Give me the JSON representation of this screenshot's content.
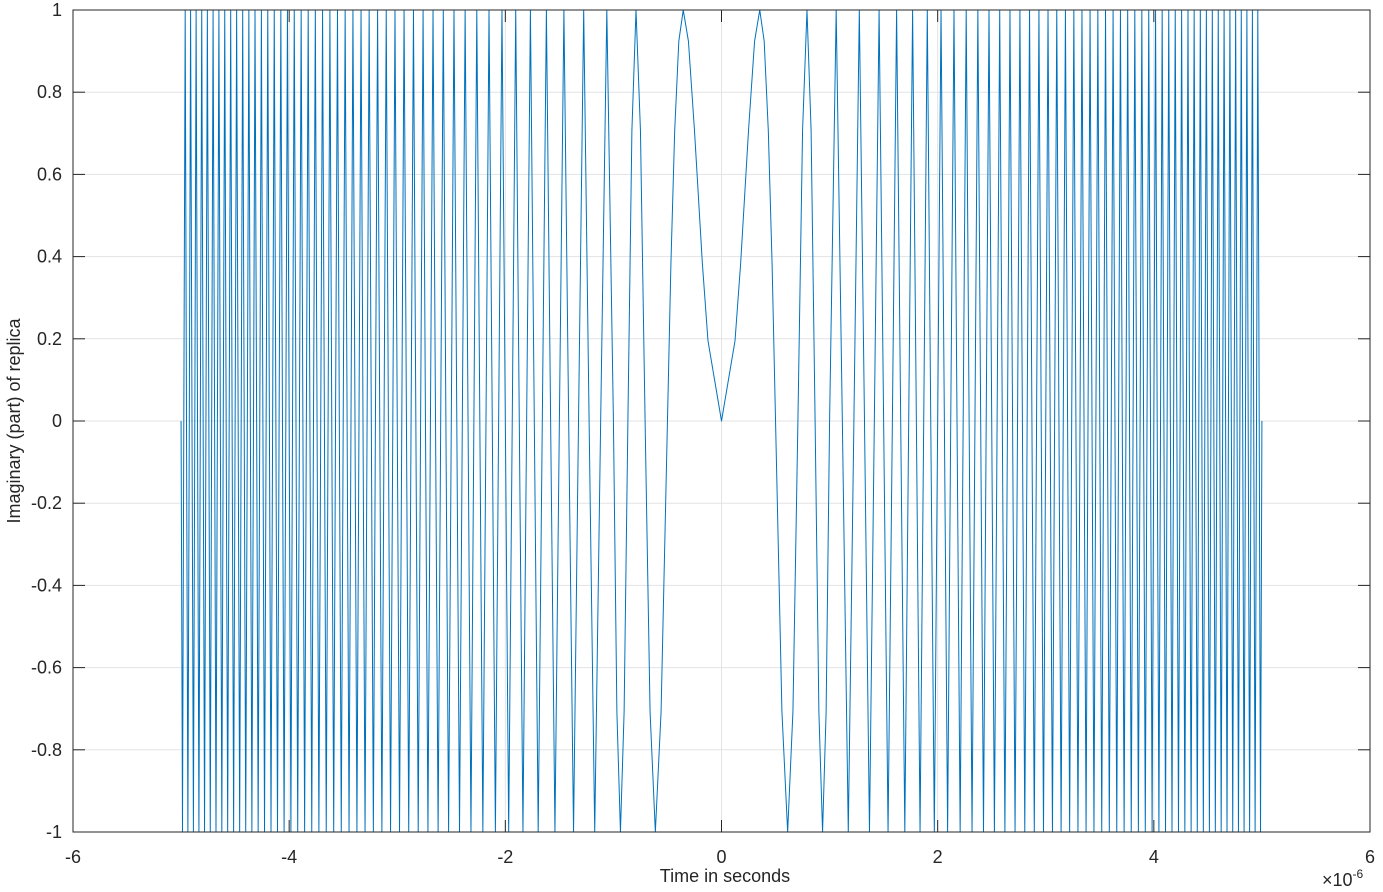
{
  "chart_data": {
    "type": "line",
    "x_label": "Time in seconds",
    "y_label": "Imaginary (part) of replica",
    "x_exponent": {
      "base": "×10",
      "power": "-6"
    },
    "color": "#0072bd",
    "grid": true,
    "xlim": [
      -6,
      6
    ],
    "ylim": [
      -1,
      1
    ],
    "xticks": [
      -6,
      -4,
      -2,
      0,
      2,
      4,
      6
    ],
    "yticks": [
      -1,
      -0.8,
      -0.6,
      -0.4,
      -0.2,
      0,
      0.2,
      0.4,
      0.6,
      0.8,
      1
    ],
    "x": [
      -5,
      -4.987,
      -4.975,
      -4.962,
      -4.95,
      -4.937,
      -4.924,
      -4.912,
      -4.899,
      -4.886,
      -4.873,
      -4.861,
      -4.848,
      -4.835,
      -4.822,
      -4.809,
      -4.796,
      -4.783,
      -4.77,
      -4.757,
      -4.743,
      -4.73,
      -4.717,
      -4.704,
      -4.69,
      -4.677,
      -4.664,
      -4.65,
      -4.637,
      -4.623,
      -4.61,
      -4.596,
      -4.583,
      -4.569,
      -4.555,
      -4.541,
      -4.528,
      -4.514,
      -4.5,
      -4.486,
      -4.472,
      -4.458,
      -4.444,
      -4.43,
      -4.416,
      -4.402,
      -4.387,
      -4.373,
      -4.359,
      -4.345,
      -4.33,
      -4.316,
      -4.301,
      -4.287,
      -4.272,
      -4.257,
      -4.243,
      -4.228,
      -4.213,
      -4.198,
      -4.183,
      -4.168,
      -4.153,
      -4.138,
      -4.123,
      -4.108,
      -4.093,
      -4.077,
      -4.062,
      -4.047,
      -4.031,
      -4.016,
      -4,
      -3.984,
      -3.969,
      -3.953,
      -3.937,
      -3.921,
      -3.905,
      -3.889,
      -3.873,
      -3.857,
      -3.841,
      -3.824,
      -3.808,
      -3.791,
      -3.775,
      -3.758,
      -3.742,
      -3.725,
      -3.708,
      -3.691,
      -3.674,
      -3.657,
      -3.64,
      -3.623,
      -3.606,
      -3.588,
      -3.571,
      -3.553,
      -3.536,
      -3.518,
      -3.5,
      -3.482,
      -3.464,
      -3.446,
      -3.428,
      -3.41,
      -3.391,
      -3.373,
      -3.354,
      -3.335,
      -3.317,
      -3.298,
      -3.279,
      -3.26,
      -3.24,
      -3.221,
      -3.202,
      -3.182,
      -3.162,
      -3.142,
      -3.122,
      -3.102,
      -3.082,
      -3.062,
      -3.041,
      -3.021,
      -3,
      -2.979,
      -2.958,
      -2.937,
      -2.915,
      -2.894,
      -2.872,
      -2.85,
      -2.828,
      -2.806,
      -2.784,
      -2.761,
      -2.739,
      -2.716,
      -2.693,
      -2.669,
      -2.646,
      -2.622,
      -2.598,
      -2.574,
      -2.55,
      -2.525,
      -2.5,
      -2.475,
      -2.449,
      -2.424,
      -2.398,
      -2.372,
      -2.345,
      -2.318,
      -2.291,
      -2.264,
      -2.236,
      -2.208,
      -2.179,
      -2.151,
      -2.121,
      -2.092,
      -2.062,
      -2.031,
      -2,
      -1.969,
      -1.936,
      -1.904,
      -1.871,
      -1.837,
      -1.803,
      -1.768,
      -1.732,
      -1.696,
      -1.658,
      -1.62,
      -1.581,
      -1.541,
      -1.5,
      -1.458,
      -1.414,
      -1.369,
      -1.323,
      -1.275,
      -1.225,
      -1.173,
      -1.118,
      -1.061,
      -1,
      -0.968,
      -0.935,
      -0.901,
      -0.866,
      -0.829,
      -0.791,
      -0.75,
      -0.707,
      -0.661,
      -0.612,
      -0.559,
      -0.5,
      -0.468,
      -0.433,
      -0.395,
      -0.354,
      -0.306,
      -0.25,
      -0.177,
      -0.125,
      0,
      0.125,
      0.177,
      0.25,
      0.306,
      0.354,
      0.395,
      0.433,
      0.468,
      0.5,
      0.559,
      0.612,
      0.661,
      0.707,
      0.75,
      0.791,
      0.829,
      0.866,
      0.901,
      0.935,
      0.968,
      1,
      1.061,
      1.118,
      1.173,
      1.225,
      1.275,
      1.323,
      1.369,
      1.414,
      1.458,
      1.5,
      1.541,
      1.581,
      1.62,
      1.658,
      1.696,
      1.732,
      1.768,
      1.803,
      1.837,
      1.871,
      1.904,
      1.936,
      1.969,
      2,
      2.031,
      2.062,
      2.092,
      2.121,
      2.151,
      2.179,
      2.208,
      2.236,
      2.264,
      2.291,
      2.318,
      2.345,
      2.372,
      2.398,
      2.424,
      2.449,
      2.475,
      2.5,
      2.525,
      2.55,
      2.574,
      2.598,
      2.622,
      2.646,
      2.669,
      2.693,
      2.716,
      2.739,
      2.761,
      2.784,
      2.806,
      2.828,
      2.85,
      2.872,
      2.894,
      2.915,
      2.937,
      2.958,
      2.979,
      3,
      3.021,
      3.041,
      3.062,
      3.082,
      3.102,
      3.122,
      3.142,
      3.162,
      3.182,
      3.202,
      3.221,
      3.24,
      3.26,
      3.279,
      3.298,
      3.317,
      3.335,
      3.354,
      3.373,
      3.391,
      3.41,
      3.428,
      3.446,
      3.464,
      3.482,
      3.5,
      3.518,
      3.536,
      3.553,
      3.571,
      3.588,
      3.606,
      3.623,
      3.64,
      3.657,
      3.674,
      3.691,
      3.708,
      3.725,
      3.742,
      3.758,
      3.775,
      3.791,
      3.808,
      3.824,
      3.841,
      3.857,
      3.873,
      3.889,
      3.905,
      3.921,
      3.937,
      3.953,
      3.969,
      3.984,
      4,
      4.016,
      4.031,
      4.047,
      4.062,
      4.077,
      4.093,
      4.108,
      4.123,
      4.138,
      4.153,
      4.168,
      4.183,
      4.198,
      4.213,
      4.228,
      4.243,
      4.257,
      4.272,
      4.287,
      4.301,
      4.316,
      4.33,
      4.345,
      4.359,
      4.373,
      4.387,
      4.402,
      4.416,
      4.43,
      4.444,
      4.458,
      4.472,
      4.486,
      4.5,
      4.514,
      4.528,
      4.541,
      4.555,
      4.569,
      4.583,
      4.596,
      4.61,
      4.623,
      4.637,
      4.65,
      4.664,
      4.677,
      4.69,
      4.704,
      4.717,
      4.73,
      4.743,
      4.757,
      4.77,
      4.783,
      4.796,
      4.809,
      4.822,
      4.835,
      4.848,
      4.861,
      4.873,
      4.886,
      4.899,
      4.912,
      4.924,
      4.937,
      4.95,
      4.962,
      4.975,
      4.987,
      5
    ],
    "values": [
      0,
      -1,
      0,
      1,
      0,
      -1,
      0,
      1,
      0,
      -1,
      0,
      1,
      0,
      -1,
      0,
      1,
      0,
      -1,
      0,
      1,
      0,
      -1,
      0,
      1,
      0,
      -1,
      0,
      1,
      0,
      -1,
      0,
      1,
      0,
      -1,
      0,
      1,
      0,
      -1,
      0,
      1,
      0,
      -1,
      0,
      1,
      0,
      -1,
      0,
      1,
      0,
      -1,
      0,
      1,
      0,
      -1,
      0,
      1,
      0,
      -1,
      0,
      1,
      0,
      -1,
      0,
      1,
      0,
      -1,
      0,
      1,
      0,
      -1,
      0,
      1,
      0,
      -1,
      0,
      1,
      0,
      -1,
      0,
      1,
      0,
      -1,
      0,
      1,
      0,
      -1,
      0,
      1,
      0,
      -1,
      0,
      1,
      0,
      -1,
      0,
      1,
      0,
      -1,
      0,
      1,
      0,
      -1,
      0,
      1,
      0,
      -1,
      0,
      1,
      0,
      -1,
      0,
      1,
      0,
      -1,
      0,
      1,
      0,
      -1,
      0,
      1,
      0,
      -1,
      0,
      1,
      0,
      -1,
      0,
      1,
      0,
      -1,
      0,
      1,
      0,
      -1,
      0,
      1,
      0,
      -1,
      0,
      1,
      0,
      -1,
      0,
      1,
      0,
      -1,
      0,
      1,
      0,
      -1,
      0,
      1,
      0,
      -1,
      0,
      1,
      0,
      -1,
      0,
      1,
      0,
      -1,
      0,
      1,
      0,
      -1,
      0,
      1,
      0,
      -1,
      0,
      1,
      0,
      -1,
      0,
      1,
      0,
      -1,
      0,
      1,
      0,
      -1,
      0,
      1,
      0,
      -1,
      0,
      1,
      0,
      -1,
      0,
      1,
      0,
      -0.707,
      -1,
      -0.707,
      0,
      0.707,
      1,
      0.707,
      0,
      -0.707,
      -1,
      -0.707,
      0,
      0.383,
      0.707,
      0.924,
      1,
      0.924,
      0.707,
      0.383,
      0.195,
      0,
      0.195,
      0.383,
      0.707,
      0.924,
      1,
      0.924,
      0.707,
      0.383,
      0,
      -0.707,
      -1,
      -0.707,
      0,
      0.707,
      1,
      0.707,
      0,
      -0.707,
      -1,
      -0.707,
      0,
      1,
      0,
      -1,
      0,
      1,
      0,
      -1,
      0,
      1,
      0,
      -1,
      0,
      1,
      0,
      -1,
      0,
      1,
      0,
      -1,
      0,
      1,
      0,
      -1,
      0,
      1,
      0,
      -1,
      0,
      1,
      0,
      -1,
      0,
      1,
      0,
      -1,
      0,
      1,
      0,
      -1,
      0,
      1,
      0,
      -1,
      0,
      1,
      0,
      -1,
      0,
      1,
      0,
      -1,
      0,
      1,
      0,
      -1,
      0,
      1,
      0,
      -1,
      0,
      1,
      0,
      -1,
      0,
      1,
      0,
      -1,
      0,
      1,
      0,
      -1,
      0,
      1,
      0,
      -1,
      0,
      1,
      0,
      -1,
      0,
      1,
      0,
      -1,
      0,
      1,
      0,
      -1,
      0,
      1,
      0,
      -1,
      0,
      1,
      0,
      -1,
      0,
      1,
      0,
      -1,
      0,
      1,
      0,
      -1,
      0,
      1,
      0,
      -1,
      0,
      1,
      0,
      -1,
      0,
      1,
      0,
      -1,
      0,
      1,
      0,
      -1,
      0,
      1,
      0,
      -1,
      0,
      1,
      0,
      -1,
      0,
      1,
      0,
      -1,
      0,
      1,
      0,
      -1,
      0,
      1,
      0,
      -1,
      0,
      1,
      0,
      -1,
      0,
      1,
      0,
      -1,
      0,
      1,
      0,
      -1,
      0,
      1,
      0,
      -1,
      0,
      1,
      0,
      -1,
      0,
      1,
      0,
      -1,
      0,
      1,
      0,
      -1,
      0,
      1,
      0,
      -1,
      0,
      1,
      0,
      -1,
      0,
      1,
      0,
      -1,
      0,
      1,
      0,
      -1,
      0,
      1,
      0,
      -1,
      0,
      1,
      0,
      -1,
      0
    ]
  }
}
